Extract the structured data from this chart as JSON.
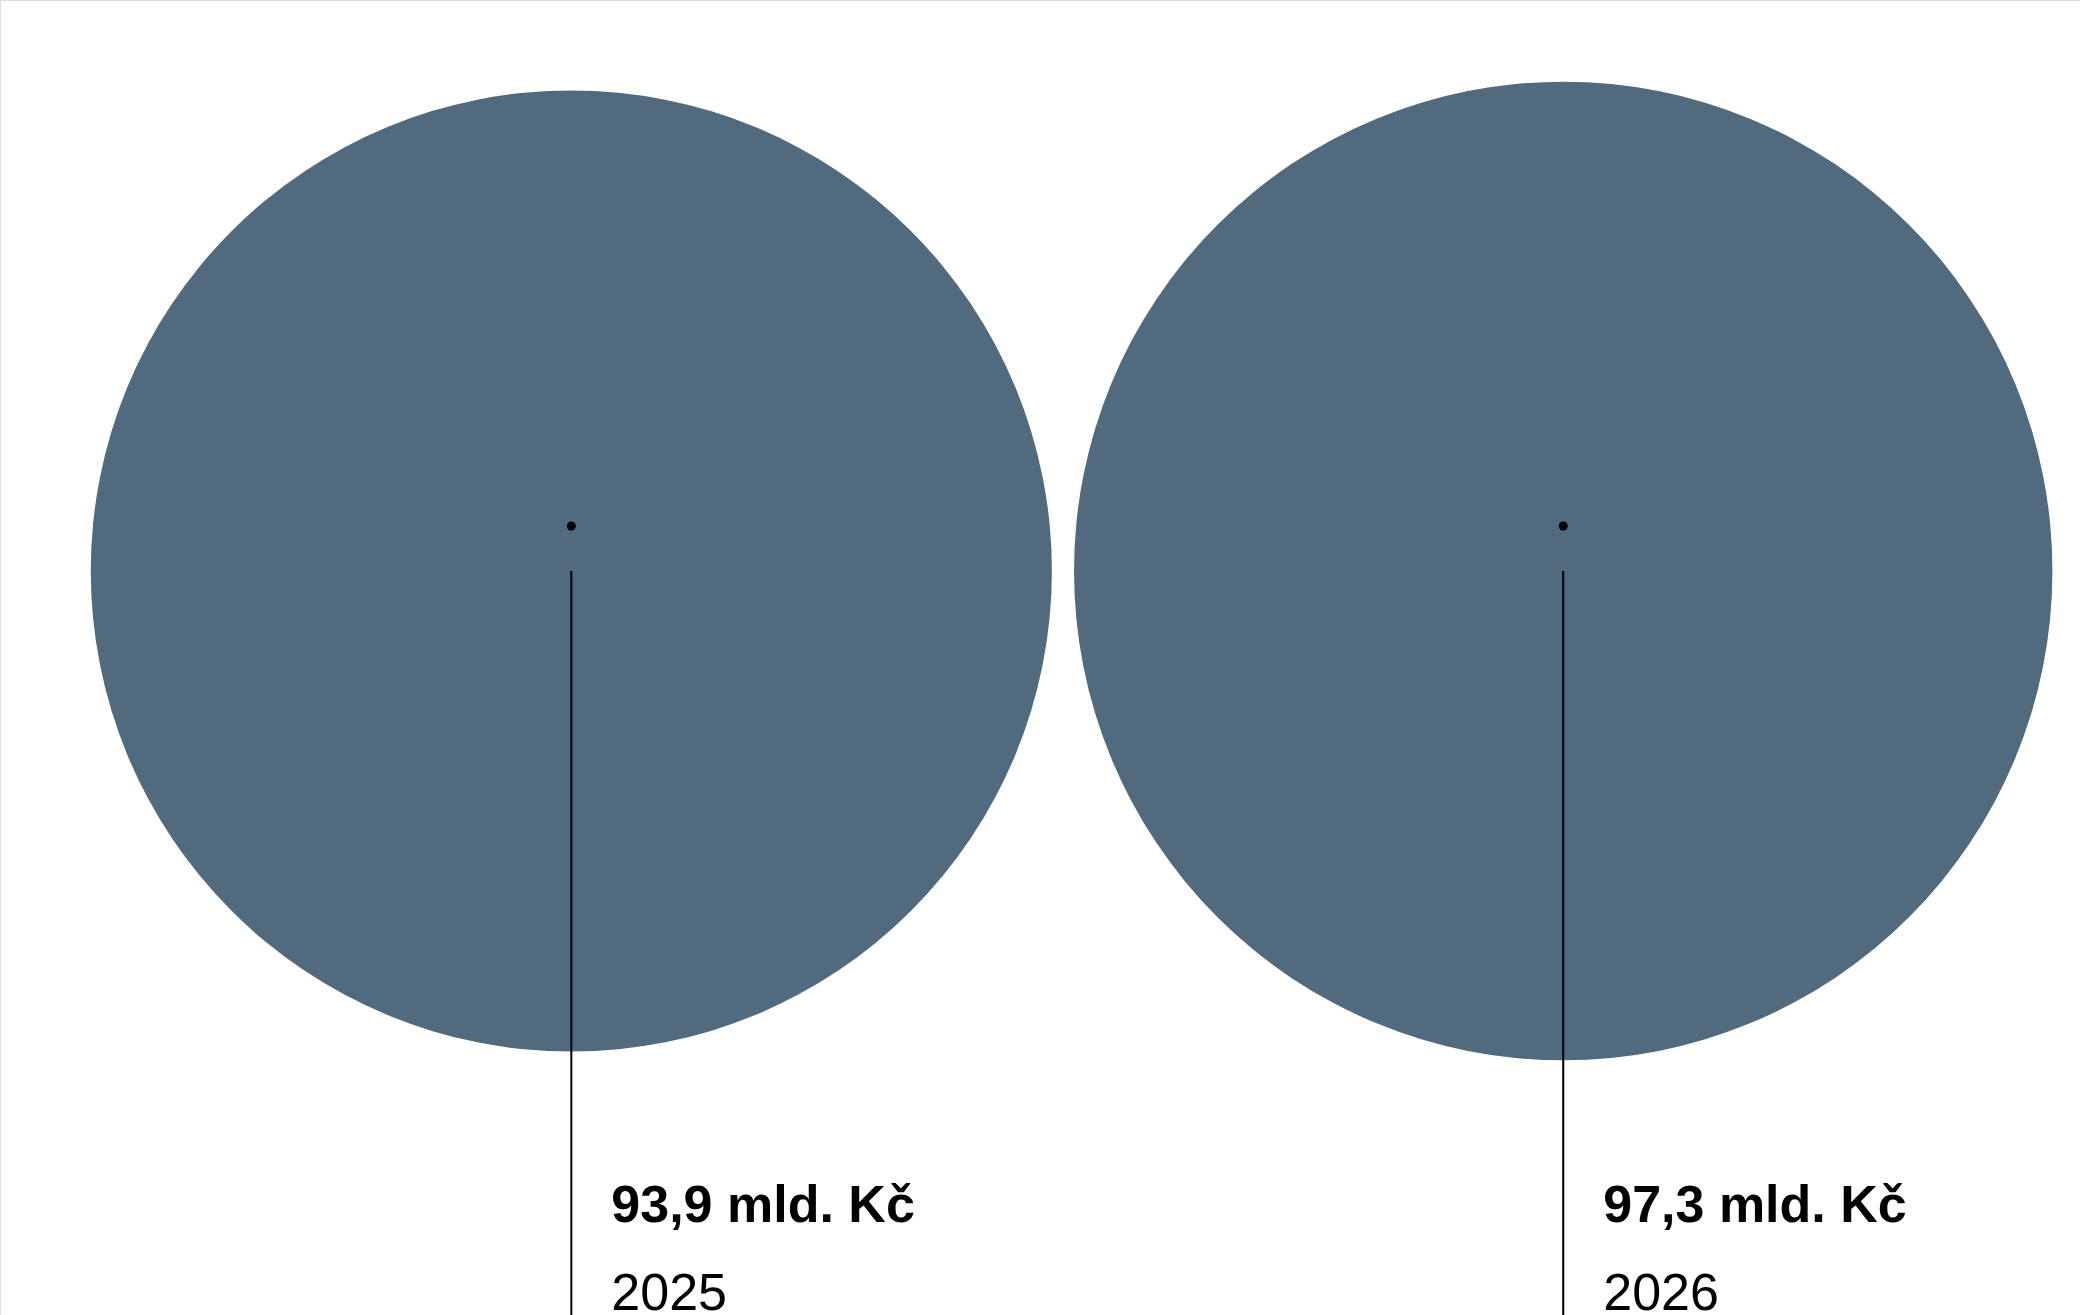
{
  "chart_data": {
    "type": "other",
    "categories": [
      "2025",
      "2026"
    ],
    "values": [
      93.9,
      97.3
    ],
    "value_labels": [
      "93,9 mld. Kč",
      "97,3 mld. Kč"
    ],
    "colors": [
      "#526a7d",
      "#526a7d"
    ]
  }
}
